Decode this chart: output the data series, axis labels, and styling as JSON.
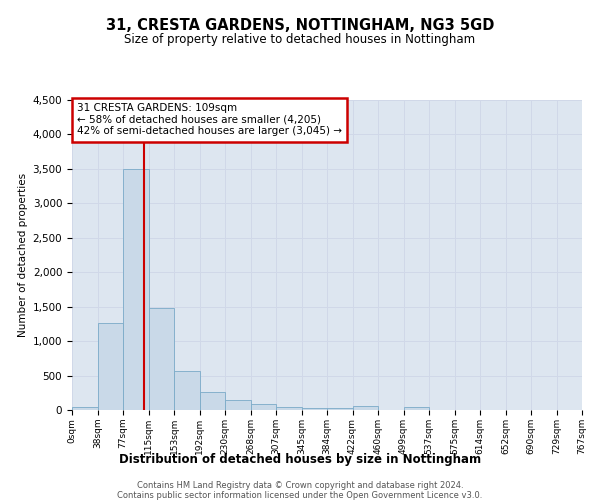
{
  "title": "31, CRESTA GARDENS, NOTTINGHAM, NG3 5GD",
  "subtitle": "Size of property relative to detached houses in Nottingham",
  "xlabel": "Distribution of detached houses by size in Nottingham",
  "ylabel": "Number of detached properties",
  "bin_labels": [
    "0sqm",
    "38sqm",
    "77sqm",
    "115sqm",
    "153sqm",
    "192sqm",
    "230sqm",
    "268sqm",
    "307sqm",
    "345sqm",
    "384sqm",
    "422sqm",
    "460sqm",
    "499sqm",
    "537sqm",
    "575sqm",
    "614sqm",
    "652sqm",
    "690sqm",
    "729sqm",
    "767sqm"
  ],
  "bar_values": [
    50,
    1270,
    3500,
    1480,
    570,
    255,
    145,
    85,
    50,
    30,
    25,
    55,
    0,
    50,
    0,
    0,
    0,
    0,
    0,
    0
  ],
  "bar_color": "#c9d9e8",
  "bar_edge_color": "#7aaac8",
  "annotation_line1": "31 CRESTA GARDENS: 109sqm",
  "annotation_line2": "← 58% of detached houses are smaller (4,205)",
  "annotation_line3": "42% of semi-detached houses are larger (3,045) →",
  "annotation_box_color": "#ffffff",
  "annotation_box_edge": "#cc0000",
  "vline_color": "#cc0000",
  "ylim": [
    0,
    4500
  ],
  "yticks": [
    0,
    500,
    1000,
    1500,
    2000,
    2500,
    3000,
    3500,
    4000,
    4500
  ],
  "grid_color": "#d0d8e8",
  "bg_color": "#dde6f0",
  "footer_line1": "Contains HM Land Registry data © Crown copyright and database right 2024.",
  "footer_line2": "Contains public sector information licensed under the Open Government Licence v3.0."
}
